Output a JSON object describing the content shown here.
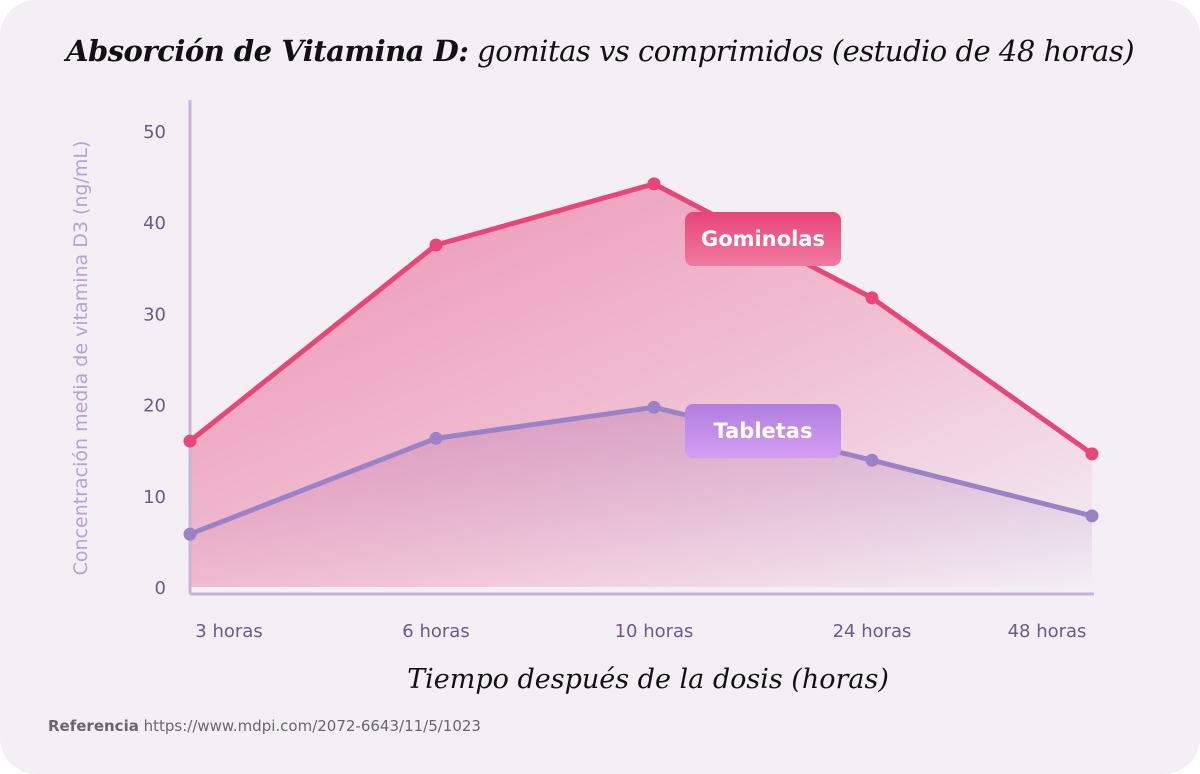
{
  "title": {
    "bold": "Absorción de Vitamina D:",
    "rest": " gomitas vs comprimidos (estudio de 48 horas)"
  },
  "footer": {
    "label": "Referencia",
    "url": "https://www.mdpi.com/2072-6643/11/5/1023"
  },
  "colors": {
    "gummies": "#e8457a",
    "tablets": "#9b82c6",
    "axis": "#c7b4dc",
    "background": "#f3eff5"
  },
  "chart_data": {
    "type": "line",
    "categories": [
      "3 horas",
      "6 horas",
      "10 horas",
      "24 horas",
      "48 horas"
    ],
    "xlabel": "Tiempo después de la dosis (horas)",
    "ylabel": "Concentración media de vitamina D3 (ng/mL)",
    "ylim": [
      0,
      50
    ],
    "yticks": [
      0,
      10,
      20,
      30,
      40,
      50
    ],
    "grid": false,
    "series": [
      {
        "name": "Gominolas",
        "values": [
          16,
          37.5,
          44.2,
          31.7,
          14.6
        ]
      },
      {
        "name": "Tabletas",
        "values": [
          5.8,
          16.3,
          19.7,
          13.9,
          7.8
        ]
      }
    ]
  }
}
